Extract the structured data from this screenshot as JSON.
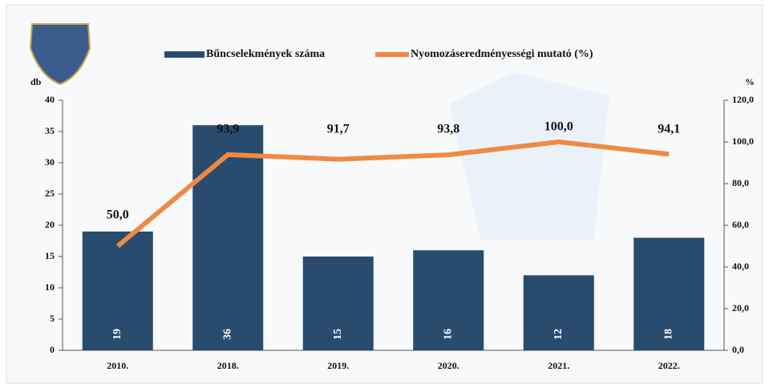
{
  "chart_data": {
    "type": "bar",
    "categories": [
      "2010.",
      "2018.",
      "2019.",
      "2020.",
      "2021.",
      "2022."
    ],
    "series": [
      {
        "name": "Bűncselekmények száma",
        "type": "bar",
        "color": "#284b6e",
        "values": [
          19,
          36,
          15,
          16,
          12,
          18
        ]
      },
      {
        "name": "Nyomozáseredményességi mutató (%)",
        "type": "line",
        "axis": "y2",
        "color": "#ef8a43",
        "values": [
          50.0,
          93.9,
          91.7,
          93.8,
          100.0,
          94.1
        ],
        "value_labels": [
          "50,0",
          "93,9",
          "91,7",
          "93,8",
          "100,0",
          "94,1"
        ]
      }
    ],
    "ylabel": "db",
    "y2label": "%",
    "ylim": [
      0,
      40
    ],
    "yticks": [
      0,
      5,
      10,
      15,
      20,
      25,
      30,
      35,
      40
    ],
    "y2lim": [
      0,
      120
    ],
    "y2ticks": [
      {
        "value": 0,
        "label": "0,0"
      },
      {
        "value": 20,
        "label": "20,0"
      },
      {
        "value": 40,
        "label": "40,0"
      },
      {
        "value": 60,
        "label": "60,0"
      },
      {
        "value": 80,
        "label": "80,0"
      },
      {
        "value": 100,
        "label": "100,0"
      },
      {
        "value": 120,
        "label": "120,0"
      }
    ],
    "grid": false,
    "legend": "top"
  }
}
